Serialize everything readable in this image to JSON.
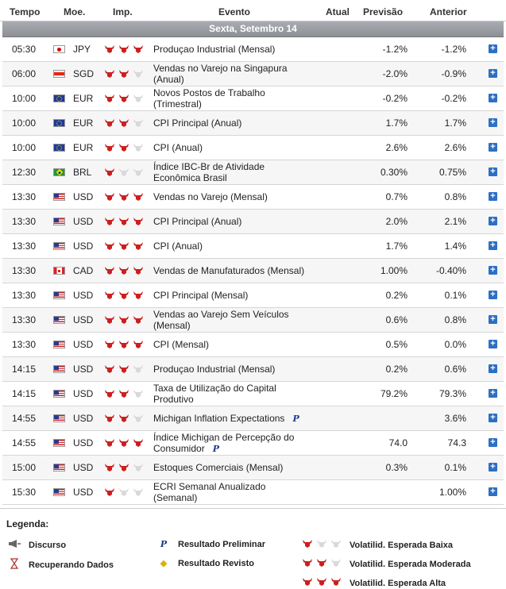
{
  "header": {
    "time": "Tempo",
    "currency": "Moe.",
    "importance": "Imp.",
    "event": "Evento",
    "actual": "Atual",
    "forecast": "Previsão",
    "previous": "Anterior"
  },
  "date_label": "Sexta, Setembro 14",
  "rows": [
    {
      "time": "05:30",
      "flag": "jp",
      "currency": "JPY",
      "imp": 3,
      "event": "Produçao Industrial (Mensal)",
      "forecast": "-1.2%",
      "previous": "-1.2%"
    },
    {
      "time": "06:00",
      "flag": "sg",
      "currency": "SGD",
      "imp": 2,
      "event": "Vendas no Varejo na Singapura (Anual)",
      "forecast": "-2.0%",
      "previous": "-0.9%"
    },
    {
      "time": "10:00",
      "flag": "eu",
      "currency": "EUR",
      "imp": 2,
      "event": "Novos Postos de Trabalho (Trimestral)",
      "forecast": "-0.2%",
      "previous": "-0.2%"
    },
    {
      "time": "10:00",
      "flag": "eu",
      "currency": "EUR",
      "imp": 2,
      "event": "CPI Principal (Anual)",
      "forecast": "1.7%",
      "previous": "1.7%"
    },
    {
      "time": "10:00",
      "flag": "eu",
      "currency": "EUR",
      "imp": 2,
      "event": "CPI (Anual)",
      "forecast": "2.6%",
      "previous": "2.6%"
    },
    {
      "time": "12:30",
      "flag": "br",
      "currency": "BRL",
      "imp": 1,
      "event": "Índice IBC-Br de Atividade Econômica Brasil",
      "forecast": "0.30%",
      "previous": "0.75%"
    },
    {
      "time": "13:30",
      "flag": "us",
      "currency": "USD",
      "imp": 3,
      "event": "Vendas no Varejo (Mensal)",
      "forecast": "0.7%",
      "previous": "0.8%"
    },
    {
      "time": "13:30",
      "flag": "us",
      "currency": "USD",
      "imp": 3,
      "event": "CPI Principal (Anual)",
      "forecast": "2.0%",
      "previous": "2.1%"
    },
    {
      "time": "13:30",
      "flag": "us",
      "currency": "USD",
      "imp": 3,
      "event": "CPI (Anual)",
      "forecast": "1.7%",
      "previous": "1.4%"
    },
    {
      "time": "13:30",
      "flag": "ca",
      "currency": "CAD",
      "imp": 3,
      "event": "Vendas de Manufaturados (Mensal)",
      "forecast": "1.00%",
      "previous": "-0.40%"
    },
    {
      "time": "13:30",
      "flag": "us",
      "currency": "USD",
      "imp": 3,
      "event": "CPI Principal (Mensal)",
      "forecast": "0.2%",
      "previous": "0.1%"
    },
    {
      "time": "13:30",
      "flag": "us",
      "currency": "USD",
      "imp": 3,
      "event": "Vendas ao Varejo Sem Veículos (Mensal)",
      "forecast": "0.6%",
      "previous": "0.8%"
    },
    {
      "time": "13:30",
      "flag": "us",
      "currency": "USD",
      "imp": 3,
      "event": "CPI (Mensal)",
      "forecast": "0.5%",
      "previous": "0.0%"
    },
    {
      "time": "14:15",
      "flag": "us",
      "currency": "USD",
      "imp": 2,
      "event": "Produçao Industrial (Mensal)",
      "forecast": "0.2%",
      "previous": "0.6%"
    },
    {
      "time": "14:15",
      "flag": "us",
      "currency": "USD",
      "imp": 2,
      "event": "Taxa de Utilização do Capital Produtivo",
      "forecast": "79.2%",
      "previous": "79.3%"
    },
    {
      "time": "14:55",
      "flag": "us",
      "currency": "USD",
      "imp": 2,
      "event": "Michigan Inflation Expectations",
      "prelim": true,
      "forecast": "",
      "previous": "3.6%"
    },
    {
      "time": "14:55",
      "flag": "us",
      "currency": "USD",
      "imp": 3,
      "event": "Índice Michigan de Percepção do Consumidor",
      "prelim": true,
      "forecast": "74.0",
      "previous": "74.3"
    },
    {
      "time": "15:00",
      "flag": "us",
      "currency": "USD",
      "imp": 2,
      "event": "Estoques Comerciais (Mensal)",
      "forecast": "0.3%",
      "previous": "0.1%"
    },
    {
      "time": "15:30",
      "flag": "us",
      "currency": "USD",
      "imp": 1,
      "event": "ECRI Semanal Anualizado (Semanal)",
      "forecast": "",
      "previous": "1.00%"
    }
  ],
  "prelim_mark": "P",
  "legend": {
    "title": "Legenda:",
    "speech": "Discurso",
    "retrieving": "Recuperando Dados",
    "preliminary": "Resultado Preliminar",
    "revised": "Resultado Revisto",
    "low": "Volatilid. Esperada Baixa",
    "moderate": "Volatilid. Esperada Moderada",
    "high": "Volatilid. Esperada Alta",
    "prelim_symbol": "P",
    "revised_symbol": "◆"
  },
  "colors": {
    "bull_on": "#cc1f1f",
    "bull_off": "#d9d9d9",
    "plus": "#2d6fc4"
  }
}
